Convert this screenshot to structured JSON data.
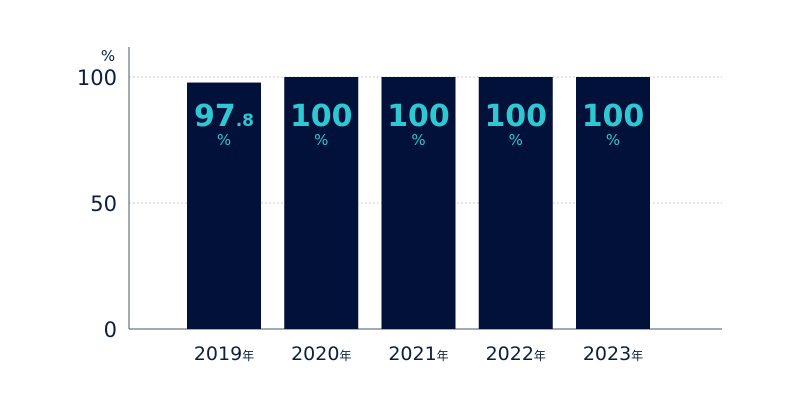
{
  "chart_data": {
    "type": "bar",
    "categories": [
      "2019",
      "2020",
      "2021",
      "2022",
      "2023"
    ],
    "category_suffix": "年",
    "values": [
      97.8,
      100,
      100,
      100,
      100
    ],
    "value_labels": [
      {
        "int": "97",
        "dec": ".8",
        "unit": "%"
      },
      {
        "int": "100",
        "dec": "",
        "unit": "%"
      },
      {
        "int": "100",
        "dec": "",
        "unit": "%"
      },
      {
        "int": "100",
        "dec": "",
        "unit": "%"
      },
      {
        "int": "100",
        "dec": "",
        "unit": "%"
      }
    ],
    "y_unit": "%",
    "yticks": [
      0,
      50,
      100
    ],
    "ylim": [
      0,
      100
    ],
    "grid": "horizontal-dotted",
    "title": "",
    "xlabel": "",
    "ylabel": "",
    "colors": {
      "bar": "#02113a",
      "value_label": "#2ec7d2",
      "text": "#0b1f3f",
      "axis": "#4a5568",
      "grid": "#bfbfbf"
    }
  }
}
